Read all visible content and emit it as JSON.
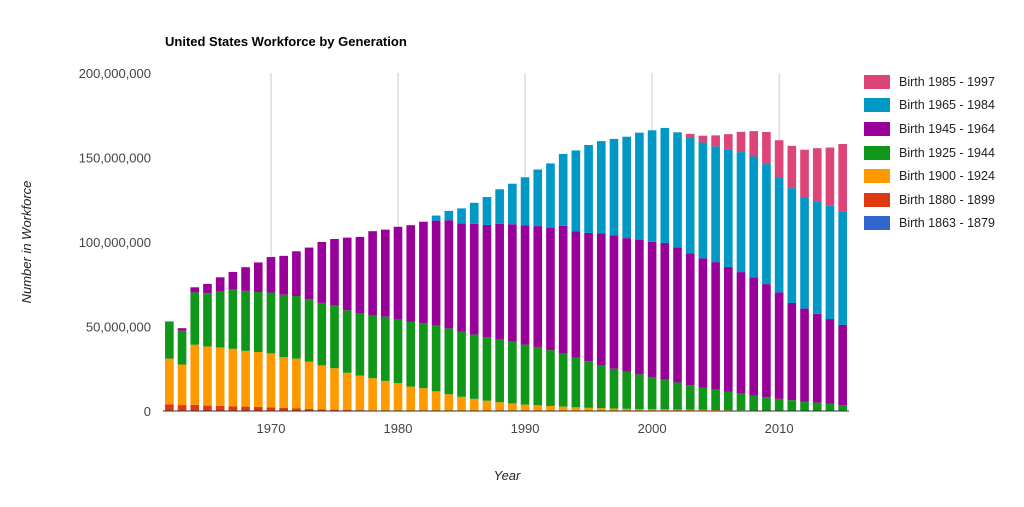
{
  "chart_data": {
    "type": "bar",
    "stacked": true,
    "title": "United States Workforce by Generation",
    "xlabel": "Year",
    "ylabel": "Number in Workforce",
    "ylim": [
      0,
      200000000
    ],
    "yticks": [
      0,
      50000000,
      100000000,
      150000000,
      200000000
    ],
    "ytick_labels": [
      "0",
      "50,000,000",
      "100,000,000",
      "150,000,000",
      "200,000,000"
    ],
    "xticks": [
      1970,
      1980,
      1990,
      2000,
      2010
    ],
    "xtick_labels": [
      "1970",
      "1980",
      "1990",
      "2000",
      "2010"
    ],
    "grid": "vertical",
    "legend_position": "right",
    "categories": [
      1962,
      1963,
      1964,
      1965,
      1966,
      1967,
      1968,
      1969,
      1970,
      1971,
      1972,
      1973,
      1974,
      1975,
      1976,
      1977,
      1978,
      1979,
      1980,
      1981,
      1982,
      1983,
      1984,
      1985,
      1986,
      1987,
      1988,
      1989,
      1990,
      1991,
      1992,
      1993,
      1994,
      1995,
      1996,
      1997,
      1998,
      1999,
      2000,
      2001,
      2002,
      2003,
      2004,
      2005,
      2006,
      2007,
      2008,
      2009,
      2010,
      2011,
      2012,
      2013,
      2014,
      2015
    ],
    "series": [
      {
        "name": "Birth 1863 - 1879",
        "color": "#3366cc",
        "values": [
          300000,
          200000,
          100000,
          0,
          0,
          0,
          0,
          0,
          0,
          0,
          0,
          0,
          0,
          0,
          0,
          0,
          0,
          0,
          0,
          0,
          0,
          0,
          0,
          0,
          0,
          0,
          0,
          0,
          0,
          0,
          0,
          0,
          0,
          0,
          0,
          0,
          0,
          0,
          0,
          0,
          0,
          0,
          0,
          0,
          0,
          0,
          0,
          0,
          0,
          0,
          0,
          0,
          0,
          0
        ]
      },
      {
        "name": "Birth 1880 - 1899",
        "color": "#dc3912",
        "values": [
          3700000,
          3300000,
          3600000,
          3200000,
          3100000,
          2800000,
          2600000,
          2400000,
          2100000,
          1800000,
          1500000,
          1200000,
          1000000,
          800000,
          600000,
          500000,
          400000,
          300000,
          200000,
          150000,
          100000,
          50000,
          0,
          0,
          0,
          0,
          0,
          0,
          0,
          0,
          0,
          0,
          0,
          0,
          0,
          0,
          0,
          0,
          0,
          0,
          0,
          0,
          0,
          0,
          0,
          0,
          0,
          0,
          0,
          0,
          0,
          0,
          0,
          0
        ]
      },
      {
        "name": "Birth 1900 - 1924",
        "color": "#ff9900",
        "values": [
          27000000,
          24000000,
          35500000,
          35000000,
          34500000,
          34000000,
          33000000,
          32500000,
          32000000,
          30000000,
          29500000,
          28000000,
          26000000,
          24500000,
          22000000,
          20500000,
          19000000,
          17500000,
          16300000,
          14300000,
          13400000,
          11600000,
          9900000,
          8400000,
          7200000,
          6100000,
          5200000,
          4500000,
          3800000,
          3400000,
          3000000,
          2600000,
          2200000,
          1900000,
          1700000,
          1500000,
          1300000,
          1200000,
          1100000,
          1000000,
          900000,
          800000,
          700000,
          600000,
          500000,
          400000,
          300000,
          300000,
          200000,
          200000,
          100000,
          100000,
          100000,
          100000
        ]
      },
      {
        "name": "Birth 1925 - 1944",
        "color": "#109618",
        "values": [
          22000000,
          20000000,
          31000000,
          31500000,
          33000000,
          35000000,
          35500000,
          35500000,
          36000000,
          37000000,
          37000000,
          37000000,
          37000000,
          37000000,
          37000000,
          37000000,
          37000000,
          38000000,
          37500000,
          38500000,
          38500000,
          39000000,
          39000000,
          38500000,
          38000000,
          37500000,
          37000000,
          36500000,
          35500000,
          34500000,
          33000000,
          31500000,
          29500000,
          27500000,
          25500000,
          23500000,
          22000000,
          20500000,
          19000000,
          17500000,
          16000000,
          14500000,
          13200000,
          12000000,
          10800000,
          9800000,
          8800000,
          7800000,
          7000000,
          6200000,
          5500000,
          4900000,
          4300000,
          3400000
        ]
      },
      {
        "name": "Birth 1945 - 1964",
        "color": "#990099",
        "values": [
          0,
          1500000,
          3000000,
          5500000,
          8500000,
          10500000,
          14000000,
          17500000,
          21000000,
          23000000,
          26500000,
          30500000,
          36000000,
          39500000,
          43000000,
          45000000,
          50000000,
          51500000,
          55000000,
          57000000,
          60000000,
          62000000,
          64000000,
          64000000,
          65500000,
          66500000,
          68500000,
          69500000,
          70500000,
          71500000,
          72500000,
          75500000,
          74500000,
          76000000,
          78000000,
          79000000,
          79000000,
          79500000,
          80000000,
          81000000,
          80000000,
          78000000,
          76500000,
          75500000,
          74000000,
          72000000,
          70000000,
          67000000,
          63000000,
          57500000,
          55000000,
          52500000,
          50000000,
          47500000
        ]
      },
      {
        "name": "Birth 1965 - 1984",
        "color": "#0099c6",
        "values": [
          0,
          0,
          0,
          0,
          0,
          0,
          0,
          0,
          0,
          0,
          0,
          0,
          0,
          0,
          0,
          0,
          0,
          0,
          0,
          0,
          0,
          3000000,
          5500000,
          9000000,
          12500000,
          16500000,
          20500000,
          24000000,
          28500000,
          33500000,
          38000000,
          42500000,
          48000000,
          52000000,
          54500000,
          57000000,
          60000000,
          63500000,
          66000000,
          68000000,
          68000000,
          68500000,
          68500000,
          68500000,
          69500000,
          71000000,
          71500000,
          71000000,
          68000000,
          68000000,
          66000000,
          66500000,
          67000000,
          67000000
        ]
      },
      {
        "name": "Birth 1985 - 1997",
        "color": "#dd4477",
        "values": [
          0,
          0,
          0,
          0,
          0,
          0,
          0,
          0,
          0,
          0,
          0,
          0,
          0,
          0,
          0,
          0,
          0,
          0,
          0,
          0,
          0,
          0,
          0,
          0,
          0,
          0,
          0,
          0,
          0,
          0,
          0,
          0,
          0,
          0,
          0,
          0,
          0,
          0,
          0,
          0,
          0,
          2200000,
          4000000,
          6500000,
          9000000,
          12000000,
          15000000,
          19000000,
          22000000,
          25000000,
          28000000,
          31500000,
          34500000,
          40000000
        ]
      }
    ]
  }
}
